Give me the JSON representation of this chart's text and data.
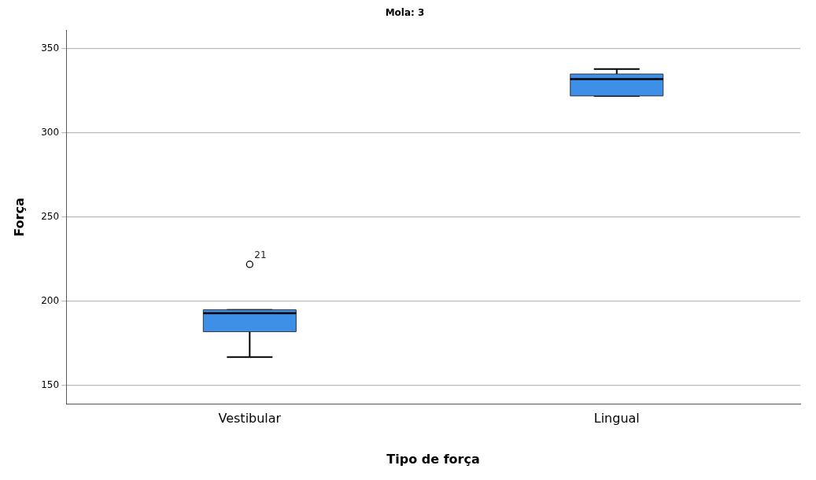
{
  "chart_data": {
    "type": "box",
    "title": "Mola: 3",
    "xlabel": "Tipo de força",
    "ylabel": "Força",
    "categories": [
      "Vestibular",
      "Lingual"
    ],
    "color": "#3e8fe8",
    "boxes": [
      {
        "low": 167,
        "q1": 182,
        "median": 193,
        "q3": 195,
        "high": 195,
        "outliers": [
          222
        ]
      },
      {
        "low": 322,
        "q1": 322,
        "median": 332,
        "q3": 335,
        "high": 338
      }
    ],
    "annotations": [
      "21"
    ],
    "ylim": [
      139,
      361
    ],
    "yticks": [
      150,
      200,
      250,
      300,
      350
    ],
    "grid": "y",
    "legend": false
  }
}
